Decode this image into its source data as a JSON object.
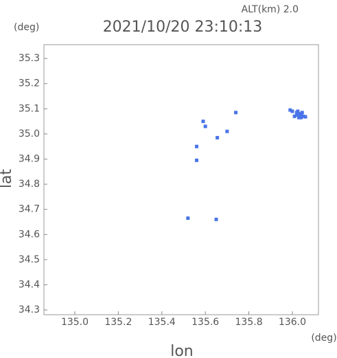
{
  "chart_data": {
    "type": "scatter",
    "title": "2021/10/20 23:10:13",
    "subtitle": "ALT(km) 2.0",
    "y_unit": "(deg)",
    "x_unit": "(deg)",
    "xlabel": "lon",
    "ylabel": "lat",
    "xlim": [
      134.858,
      136.12
    ],
    "ylim": [
      34.281,
      35.355
    ],
    "xticks": [
      {
        "value": 135.0,
        "label": "135.0"
      },
      135.2,
      135.4,
      135.6,
      135.8,
      {
        "value": 136.0,
        "label": "136.0"
      }
    ],
    "yticks": [
      34.3,
      34.4,
      34.5,
      34.6,
      34.7,
      34.8,
      34.9,
      {
        "value": 35.0,
        "label": "35.0"
      },
      35.1,
      35.2,
      35.3
    ],
    "series": [
      {
        "color": "#4a74e8",
        "x": [
          135.59,
          135.6,
          135.56,
          135.56,
          135.655,
          135.7,
          135.74,
          135.52,
          135.65,
          136.0,
          136.02,
          136.03,
          136.04,
          136.05,
          136.03,
          136.02,
          136.01,
          136.045,
          136.06,
          135.99,
          136.035,
          136.025,
          136.04
        ],
        "y": [
          35.05,
          35.03,
          34.95,
          34.895,
          34.985,
          35.01,
          35.085,
          34.665,
          34.66,
          35.09,
          35.085,
          35.08,
          35.075,
          35.07,
          35.065,
          35.075,
          35.07,
          35.085,
          35.068,
          35.095,
          35.07,
          35.09,
          35.065
        ]
      }
    ]
  }
}
